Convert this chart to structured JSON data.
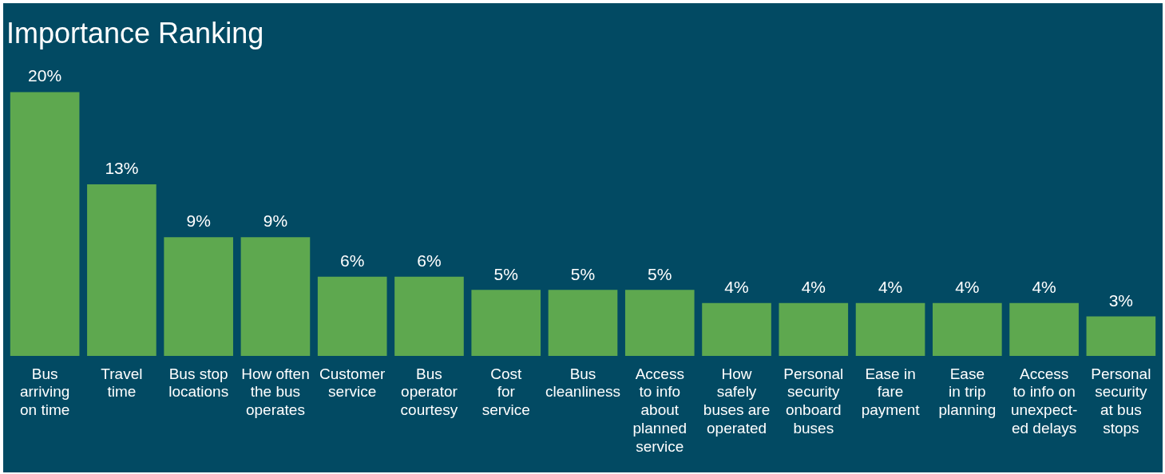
{
  "chart_data": {
    "type": "bar",
    "title": "Importance Ranking",
    "categories": [
      "Bus\narriving\non time",
      "Travel\ntime",
      "Bus stop\nlocations",
      "How often\nthe bus\noperates",
      "Customer\nservice",
      "Bus\noperator\ncourtesy",
      "Cost\nfor\nservice",
      "Bus\ncleanliness",
      "Access\nto info\nabout\nplanned\nservice",
      "How\nsafely\nbuses are\noperated",
      "Personal\nsecurity\nonboard\nbuses",
      "Ease in\nfare\npayment",
      "Ease\nin trip\nplanning",
      "Access\nto info on\nunexpect-\ned delays",
      "Personal\nsecurity\nat bus\nstops"
    ],
    "values": [
      20,
      13,
      9,
      9,
      6,
      6,
      5,
      5,
      5,
      4,
      4,
      4,
      4,
      4,
      3
    ],
    "value_labels": [
      "20%",
      "13%",
      "9%",
      "9%",
      "6%",
      "6%",
      "5%",
      "5%",
      "5%",
      "4%",
      "4%",
      "4%",
      "4%",
      "4%",
      "3%"
    ],
    "color": "#5ea84f",
    "grid": false,
    "legend": false
  }
}
